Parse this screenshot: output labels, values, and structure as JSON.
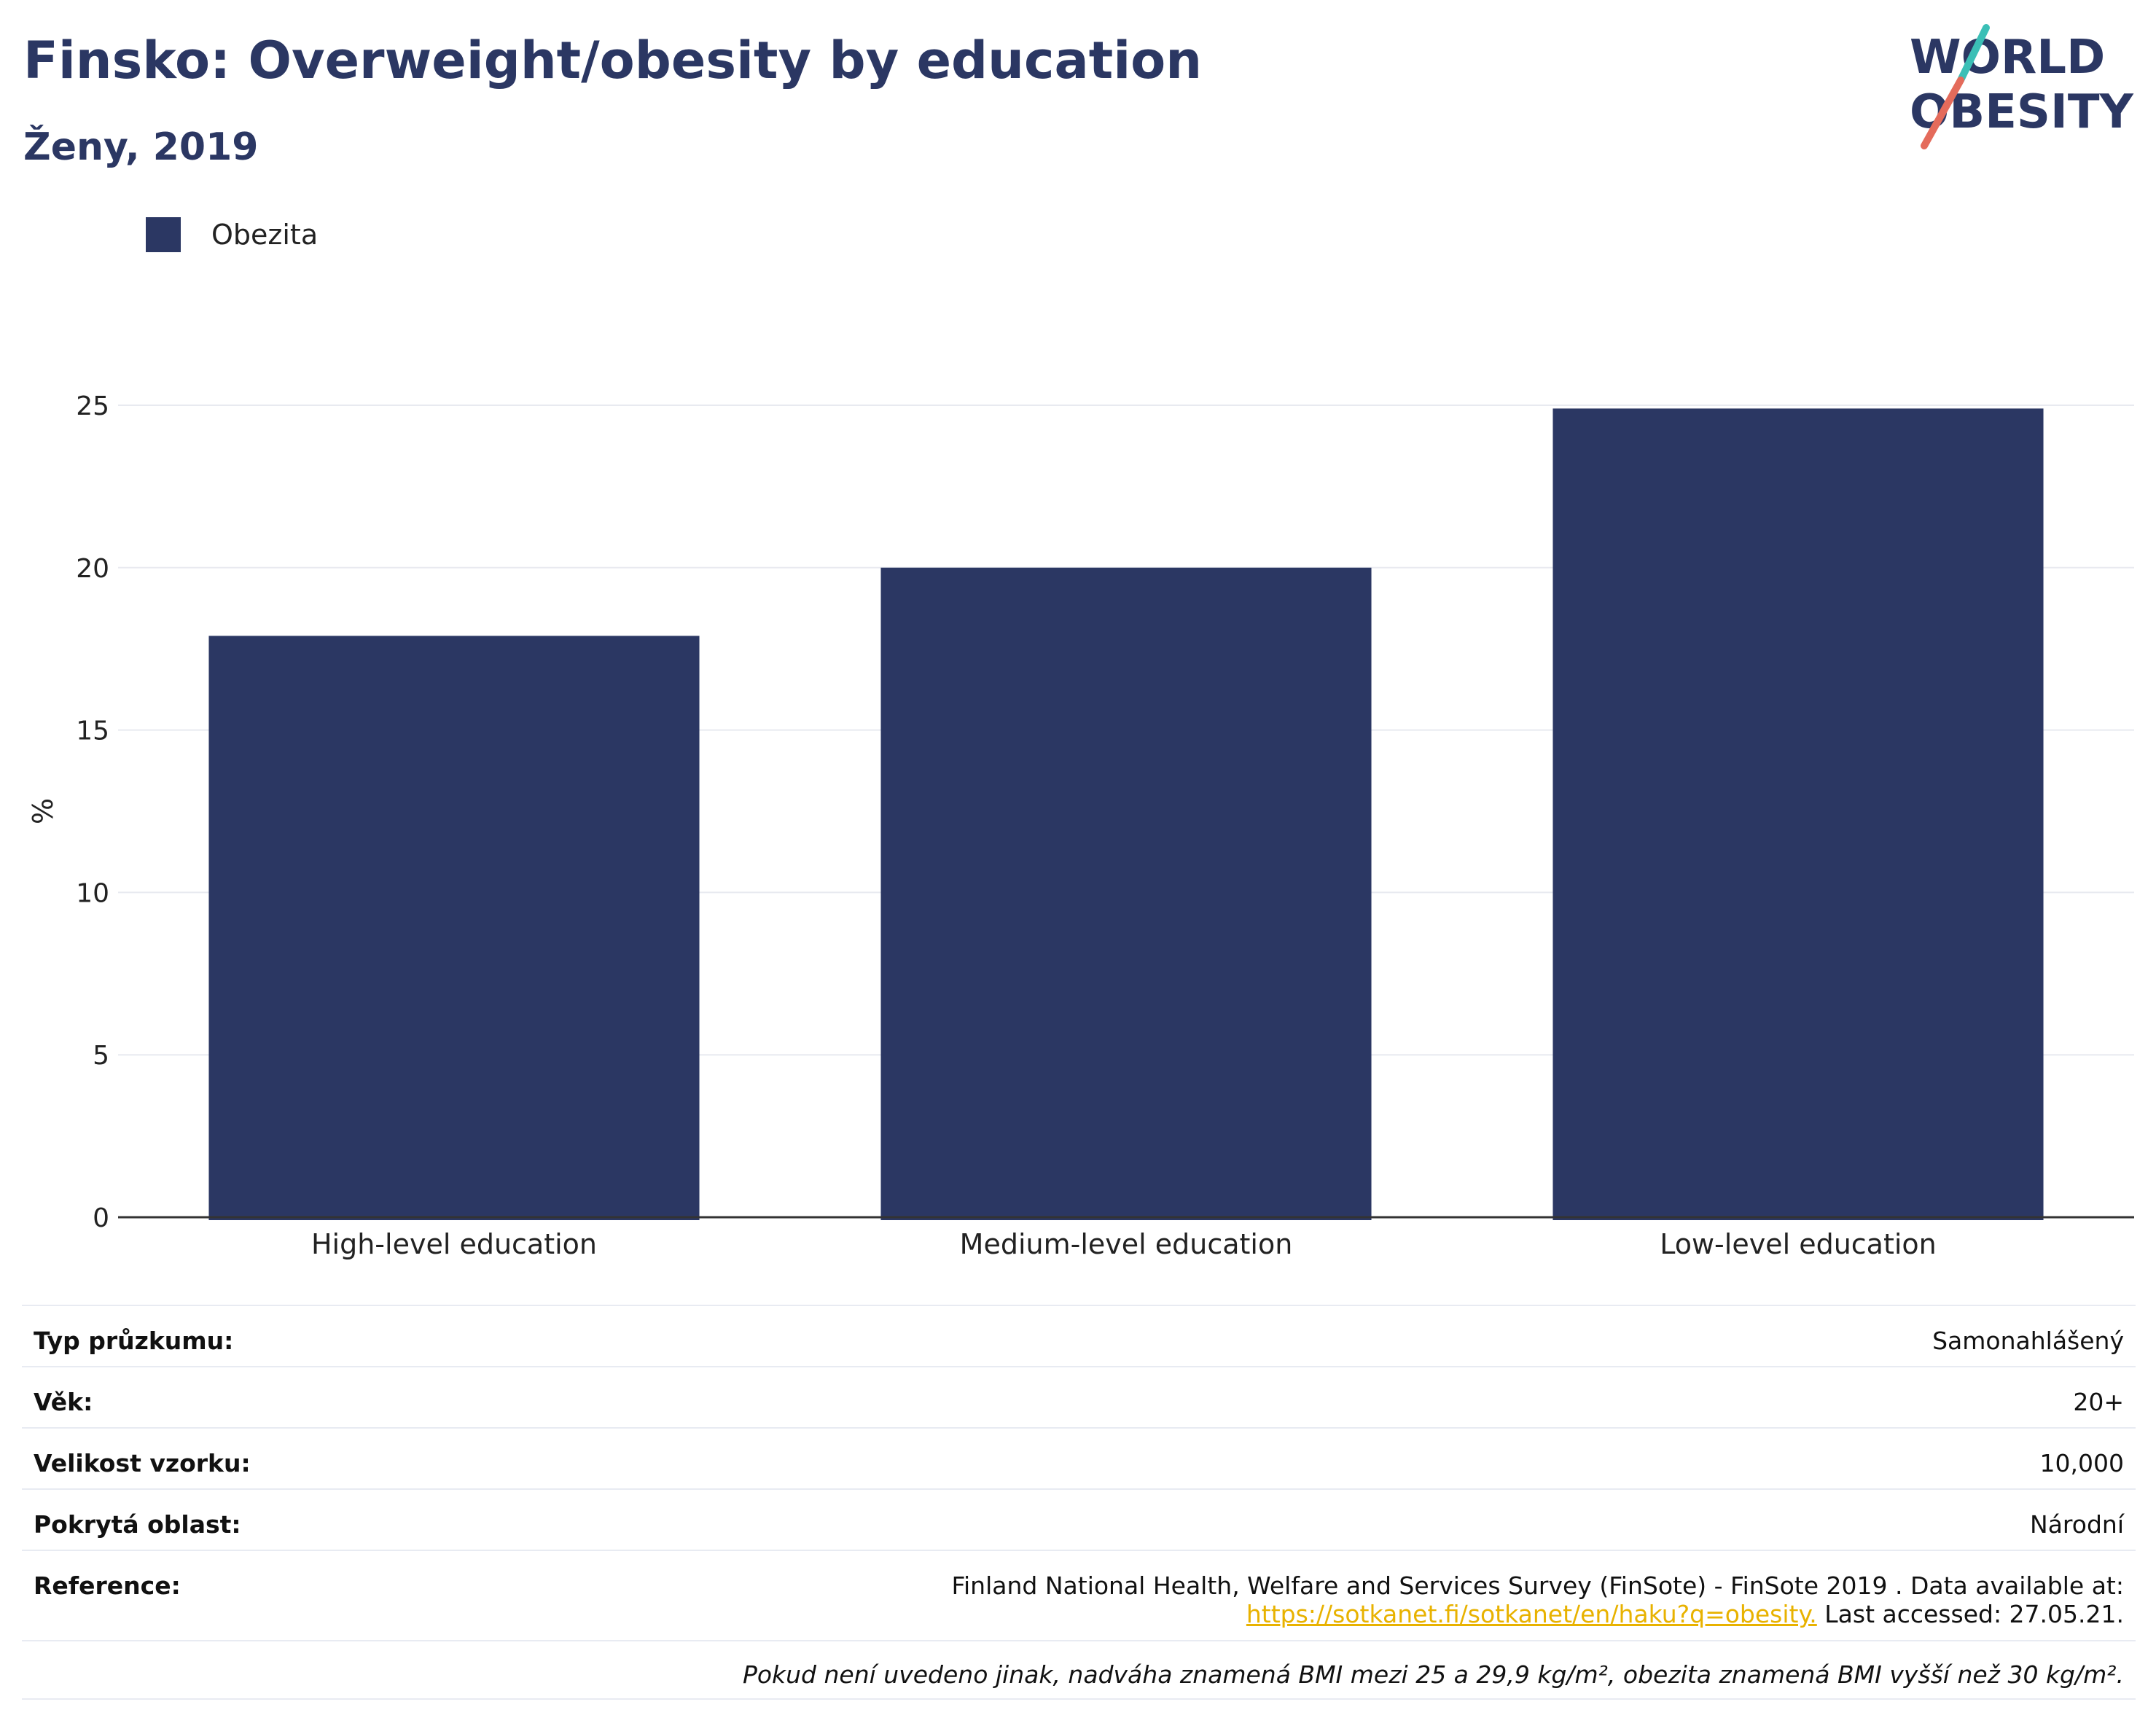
{
  "header": {
    "title": "Finsko: Overweight/obesity by education",
    "subtitle": "Ženy, 2019"
  },
  "logo": {
    "line1": "WORLD",
    "line2": "OBESITY"
  },
  "legend": {
    "label": "Obezita",
    "color": "#2b3763"
  },
  "chart_data": {
    "type": "bar",
    "categories": [
      "High-level education",
      "Medium-level education",
      "Low-level education"
    ],
    "series": [
      {
        "name": "Obezita",
        "values": [
          17.9,
          20.0,
          24.9
        ]
      }
    ],
    "ylabel": "%",
    "ylim": [
      0,
      25
    ],
    "yticks": [
      0,
      5,
      10,
      15,
      20,
      25
    ],
    "grid": true,
    "legend_position": "top-left"
  },
  "info": {
    "survey_type_label": "Typ průzkumu:",
    "survey_type_value": "Samonahlášený",
    "age_label": "Věk:",
    "age_value": "20+",
    "sample_label": "Velikost vzorku:",
    "sample_value": "10,000",
    "area_label": "Pokrytá oblast:",
    "area_value": "Národní",
    "reference_label": "Reference:",
    "reference_text": "Finland National Health, Welfare and Services Survey (FinSote) - FinSote 2019 . Data available at:",
    "reference_link": "https://sotkanet.fi/sotkanet/en/haku?q=obesity.",
    "reference_accessed": " Last accessed: 27.05.21.",
    "note": "Pokud není uvedeno jinak, nadváha znamená BMI mezi 25 a 29,9 kg/m², obezita znamená BMI vyšší než 30 kg/m²."
  }
}
